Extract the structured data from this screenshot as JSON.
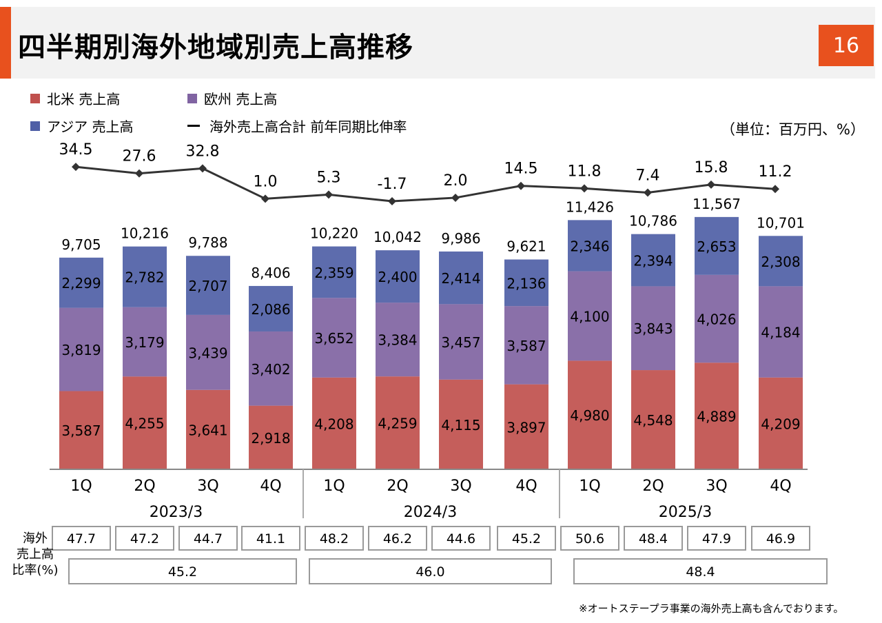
{
  "header": {
    "title": "四半期別海外地域別売上高推移",
    "page_number": "16",
    "accent_color": "#e8511e"
  },
  "legend": {
    "north_america": "北米  売上高",
    "europe": "欧州  売上高",
    "asia": "アジア  売上高",
    "growth": "海外売上高合計 前年同期比伸率"
  },
  "unit": "（単位：百万円、%）",
  "table": {
    "row_label": "海外\n売上高\n比率(%)"
  },
  "footnote": "※オートステープラ事業の海外売上高も含んでおります。",
  "chart_data": {
    "type": "bar",
    "stacked": true,
    "categories": [
      "1Q",
      "2Q",
      "3Q",
      "4Q",
      "1Q",
      "2Q",
      "3Q",
      "4Q",
      "1Q",
      "2Q",
      "3Q",
      "4Q"
    ],
    "groups": [
      {
        "label": "2023/3",
        "start": 0,
        "end": 3
      },
      {
        "label": "2024/3",
        "start": 4,
        "end": 7
      },
      {
        "label": "2025/3",
        "start": 8,
        "end": 11
      }
    ],
    "series": [
      {
        "name": "北米  売上高",
        "color": "#c0504d",
        "values": [
          3587,
          4255,
          3641,
          2918,
          4208,
          4259,
          4115,
          3897,
          4980,
          4548,
          4889,
          4209
        ]
      },
      {
        "name": "欧州  売上高",
        "color": "#8064a2",
        "values": [
          3819,
          3179,
          3439,
          3402,
          3652,
          3384,
          3457,
          3587,
          4100,
          3843,
          4026,
          4184
        ]
      },
      {
        "name": "アジア  売上高",
        "color": "#4f5fa6",
        "values": [
          2299,
          2782,
          2707,
          2086,
          2359,
          2400,
          2414,
          2136,
          2346,
          2394,
          2653,
          2308
        ]
      }
    ],
    "series_labels": {
      "north_america": [
        "3,587",
        "4,255",
        "3,641",
        "2,918",
        "4,208",
        "4,259",
        "4,115",
        "3,897",
        "4,980",
        "4,548",
        "4,889",
        "4,209"
      ],
      "europe": [
        "3,819",
        "3,179",
        "3,439",
        "3,402",
        "3,652",
        "3,384",
        "3,457",
        "3,587",
        "4,100",
        "3,843",
        "4,026",
        "4,184"
      ],
      "asia": [
        "2,299",
        "2,782",
        "2,707",
        "2,086",
        "2,359",
        "2,400",
        "2,414",
        "2,136",
        "2,346",
        "2,394",
        "2,653",
        "2,308"
      ]
    },
    "totals": [
      9705,
      10216,
      9788,
      8406,
      10220,
      10042,
      9986,
      9621,
      11426,
      10786,
      11567,
      10701
    ],
    "total_labels": [
      "9,705",
      "10,216",
      "9,788",
      "8,406",
      "10,220",
      "10,042",
      "9,986",
      "9,621",
      "11,426",
      "10,786",
      "11,567",
      "10,701"
    ],
    "growth_line": {
      "name": "海外売上高合計 前年同期比伸率",
      "values": [
        34.5,
        27.6,
        32.8,
        1.0,
        5.3,
        -1.7,
        2.0,
        14.5,
        11.8,
        7.4,
        15.8,
        11.2
      ],
      "labels": [
        "34.5",
        "27.6",
        "32.8",
        "1.0",
        "5.3",
        "-1.7",
        "2.0",
        "14.5",
        "11.8",
        "7.4",
        "15.8",
        "11.2"
      ]
    },
    "overseas_ratio": {
      "quarterly": [
        "47.7",
        "47.2",
        "44.7",
        "41.1",
        "48.2",
        "46.2",
        "44.6",
        "45.2",
        "50.6",
        "48.4",
        "47.9",
        "46.9"
      ],
      "annual": [
        "45.2",
        "46.0",
        "48.4"
      ]
    },
    "ylim": [
      0,
      12000
    ],
    "grid": false
  }
}
